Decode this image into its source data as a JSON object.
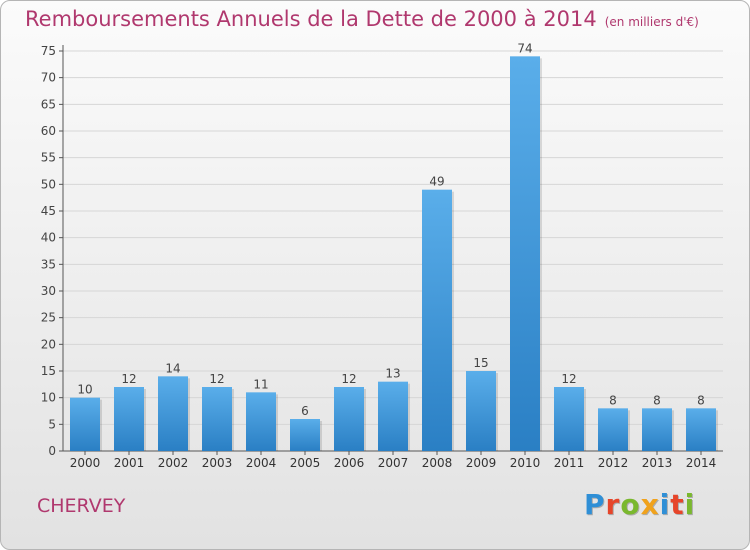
{
  "header": {
    "title": "Remboursements Annuels de la Dette de 2000 à 2014",
    "unit": "(en milliers d'€)"
  },
  "commune": "CHERVEY",
  "logo": {
    "text": "Proxiti",
    "letters": [
      {
        "ch": "P",
        "color": "#2f8fd6"
      },
      {
        "ch": "r",
        "color": "#e6452a"
      },
      {
        "ch": "o",
        "color": "#7ab82e"
      },
      {
        "ch": "x",
        "color": "#f0a21c"
      },
      {
        "ch": "i",
        "color": "#2f8fd6"
      },
      {
        "ch": "t",
        "color": "#e6452a"
      },
      {
        "ch": "i",
        "color": "#7ab82e"
      }
    ]
  },
  "chart_data": {
    "type": "bar",
    "title": "Remboursements Annuels de la Dette de 2000 à 2014",
    "categories": [
      "2000",
      "2001",
      "2002",
      "2003",
      "2004",
      "2005",
      "2006",
      "2007",
      "2008",
      "2009",
      "2010",
      "2011",
      "2012",
      "2013",
      "2014"
    ],
    "values": [
      10,
      12,
      14,
      12,
      11,
      6,
      12,
      13,
      49,
      15,
      74,
      12,
      8,
      8,
      8
    ],
    "ylim": [
      0,
      75
    ],
    "yticks": [
      0,
      5,
      10,
      15,
      20,
      25,
      30,
      35,
      40,
      45,
      50,
      55,
      60,
      65,
      70,
      75
    ],
    "grid": true,
    "bar_color_top": "#5aaeea",
    "bar_color_bottom": "#2a7fc4"
  }
}
